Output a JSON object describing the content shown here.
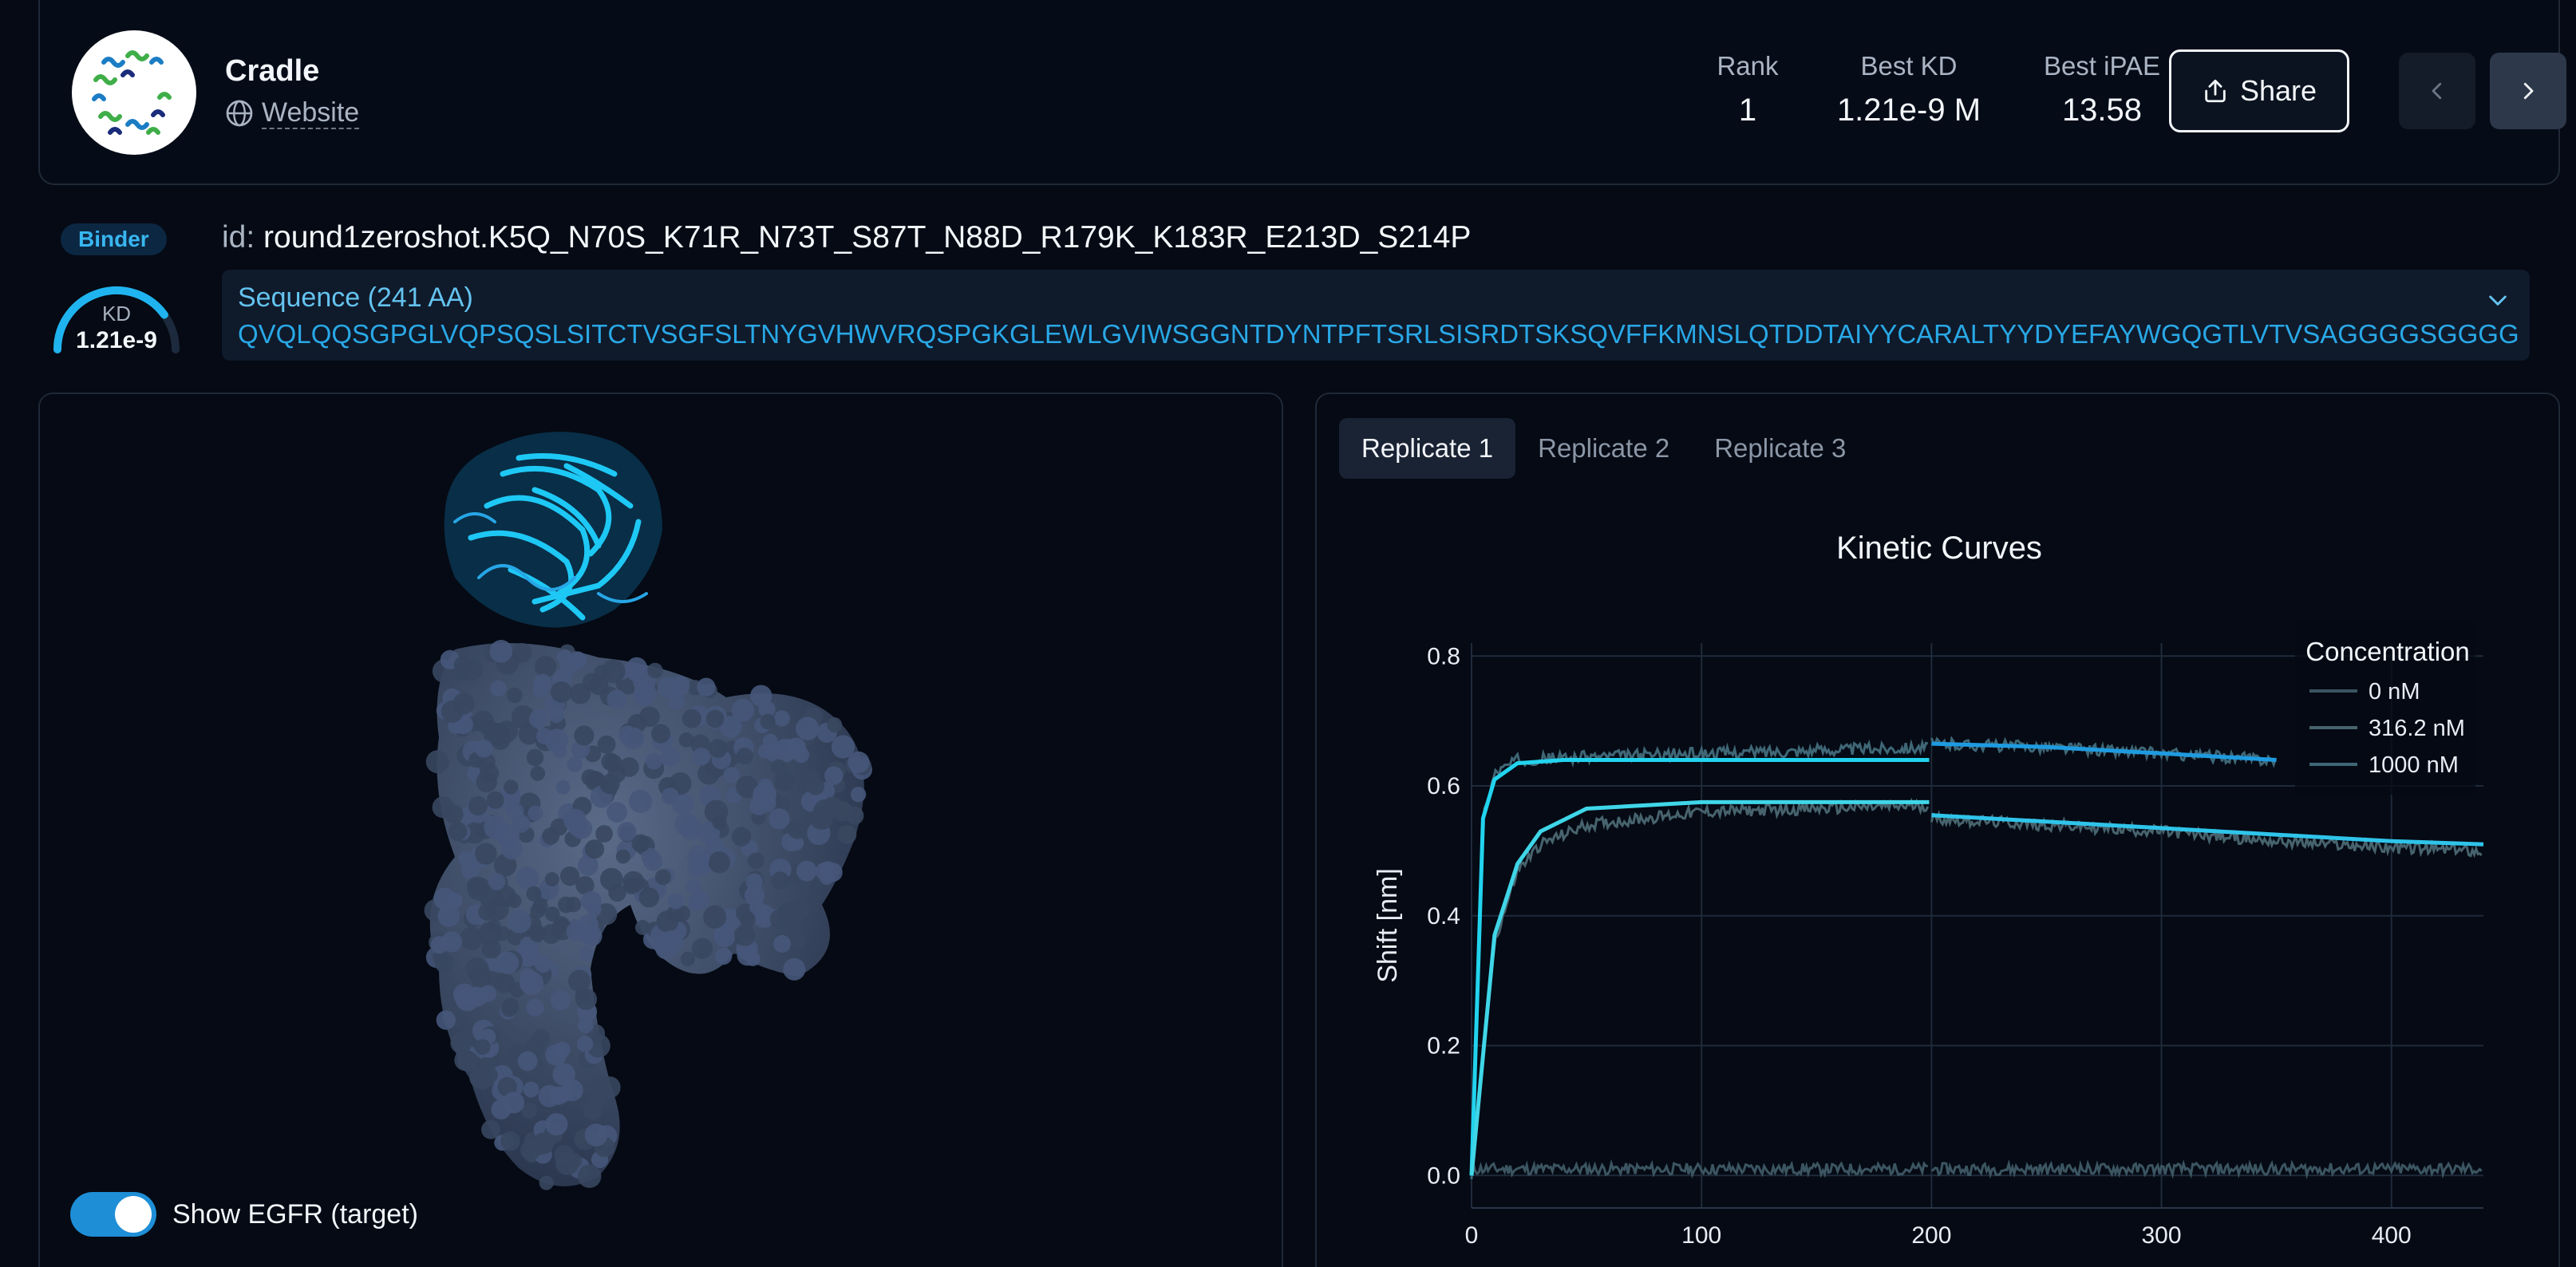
{
  "org": {
    "name": "Cradle",
    "website_label": "Website"
  },
  "stats": {
    "rank_label": "Rank",
    "rank_value": "1",
    "kd_label": "Best KD",
    "kd_value": "1.21e-9 M",
    "ipae_label": "Best iPAE",
    "ipae_value": "13.58"
  },
  "share_label": "Share",
  "binder": {
    "badge": "Binder",
    "kd_label": "KD",
    "kd_value": "1.21e-9",
    "gauge_fraction": 0.8
  },
  "id": {
    "prefix": "id:",
    "value": "round1zeroshot.K5Q_N70S_K71R_N73T_S87T_N88D_R179K_K183R_E213D_S214P"
  },
  "sequence": {
    "title": "Sequence (241 AA)",
    "text": "QVQLQQSGPGLVQPSQSLSITCTVSGFSLTNYGVHWVRQSPGKGLEWLGVIWSGGNTDYNTPFTSRLSISRDTSKSQVFFKMNSLQTDDTAIYYCARALTYYDYEFAYWGQGTLVTVSAGGGGSGGGG"
  },
  "viewer": {
    "toggle_label": "Show EGFR (target)",
    "toggle_on": true
  },
  "tabs": [
    {
      "label": "Replicate 1",
      "active": true
    },
    {
      "label": "Replicate 2",
      "active": false
    },
    {
      "label": "Replicate 3",
      "active": false
    }
  ],
  "colors": {
    "accent": "#29a8e6",
    "fit": "#22d3ee",
    "trace": "#3d5a66"
  },
  "chart_data": {
    "type": "line",
    "title": "Kinetic Curves",
    "xlabel": "",
    "ylabel": "Shift [nm]",
    "xlim": [
      0,
      440
    ],
    "ylim": [
      -0.05,
      0.82
    ],
    "xticks": [
      0,
      100,
      200,
      300,
      400
    ],
    "yticks": [
      0.0,
      0.2,
      0.4,
      0.6,
      0.8
    ],
    "legend_title": "Concentration",
    "legend_position": "top-right",
    "grid": true,
    "series": [
      {
        "name": "0 nM",
        "x": [
          0,
          50,
          100,
          150,
          200,
          250,
          300,
          350,
          400,
          440
        ],
        "y": [
          0.01,
          0.01,
          0.01,
          0.01,
          0.01,
          0.01,
          0.01,
          0.01,
          0.01,
          0.01
        ]
      },
      {
        "name": "316.2 nM",
        "x": [
          0,
          10,
          20,
          30,
          50,
          100,
          150,
          199,
          200,
          250,
          300,
          350,
          400,
          440
        ],
        "y": [
          0.0,
          0.36,
          0.47,
          0.51,
          0.54,
          0.56,
          0.565,
          0.57,
          0.55,
          0.54,
          0.53,
          0.515,
          0.505,
          0.5
        ]
      },
      {
        "name": "1000 nM",
        "x": [
          0,
          5,
          10,
          20,
          50,
          100,
          150,
          199,
          200,
          250,
          300,
          350
        ],
        "y": [
          0.0,
          0.55,
          0.62,
          0.64,
          0.645,
          0.65,
          0.655,
          0.66,
          0.665,
          0.66,
          0.65,
          0.64
        ]
      }
    ],
    "fits": [
      {
        "x": [
          0,
          5,
          10,
          20,
          40,
          100,
          199
        ],
        "y": [
          0.0,
          0.55,
          0.61,
          0.635,
          0.64,
          0.64,
          0.64
        ]
      },
      {
        "x": [
          200,
          250,
          300,
          350
        ],
        "y": [
          0.665,
          0.66,
          0.65,
          0.64
        ]
      },
      {
        "x": [
          0,
          10,
          20,
          30,
          50,
          100,
          150,
          199
        ],
        "y": [
          0.0,
          0.37,
          0.48,
          0.53,
          0.565,
          0.575,
          0.575,
          0.575
        ]
      },
      {
        "x": [
          200,
          250,
          300,
          350,
          400,
          440
        ],
        "y": [
          0.555,
          0.545,
          0.535,
          0.525,
          0.515,
          0.51
        ]
      }
    ]
  }
}
